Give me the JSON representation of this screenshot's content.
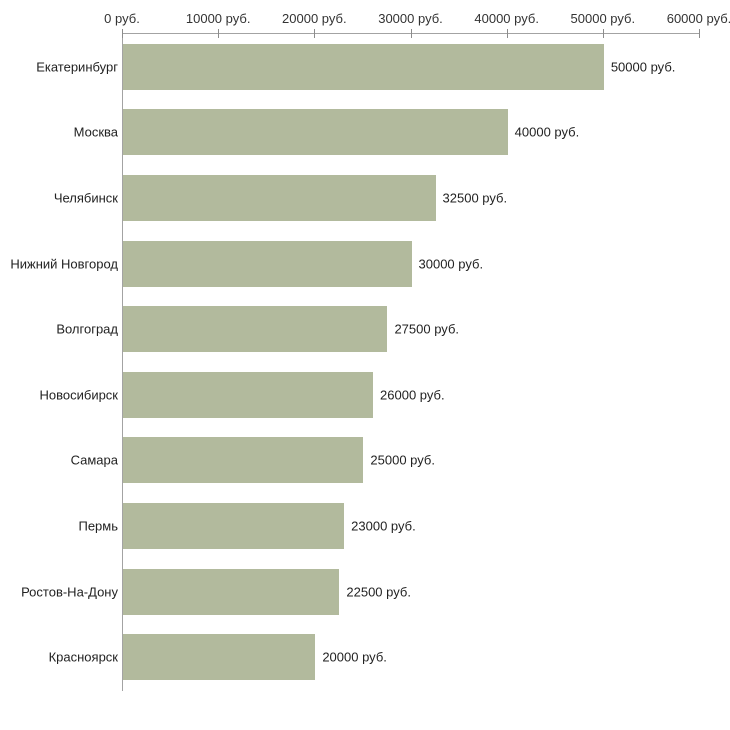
{
  "chart_data": {
    "type": "bar",
    "orientation": "horizontal",
    "title": "",
    "xlabel": "",
    "ylabel": "",
    "categories": [
      "Екатеринбург",
      "Москва",
      "Челябинск",
      "Нижний Новгород",
      "Волгоград",
      "Новосибирск",
      "Самара",
      "Пермь",
      "Ростов-На-Дону",
      "Красноярск"
    ],
    "values": [
      50000,
      40000,
      32500,
      30000,
      27500,
      26000,
      25000,
      23000,
      22500,
      20000
    ],
    "value_labels": [
      "50000 руб.",
      "40000 руб.",
      "32500 руб.",
      "30000 руб.",
      "27500 руб.",
      "26000 руб.",
      "25000 руб.",
      "23000 руб.",
      "22500 руб.",
      "20000 руб."
    ],
    "x_ticks": [
      0,
      10000,
      20000,
      30000,
      40000,
      50000,
      60000
    ],
    "x_tick_labels": [
      "0 руб.",
      "10000 руб.",
      "20000 руб.",
      "30000 руб.",
      "40000 руб.",
      "50000 руб.",
      "60000 руб."
    ],
    "xlim": [
      0,
      60000
    ],
    "grid": false,
    "legend": "none",
    "bar_color": "#b2ba9d",
    "axis_color": "#a3a3a3",
    "text_color": "#222222"
  }
}
